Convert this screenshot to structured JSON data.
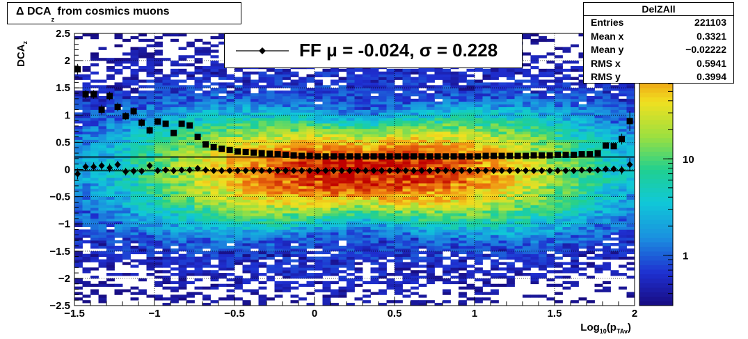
{
  "title": {
    "prefix": "Δ DCA",
    "sub": "z",
    "suffix": " from cosmics muons"
  },
  "stats": {
    "name": "DelZAll",
    "rows": [
      {
        "label": "Entries",
        "value": "221103"
      },
      {
        "label": "Mean x",
        "value": "0.3321"
      },
      {
        "label": "Mean y",
        "value": "−0.02222"
      },
      {
        "label": "RMS x",
        "value": "0.5941"
      },
      {
        "label": "RMS y",
        "value": "0.3994"
      }
    ]
  },
  "legend": {
    "entry": "FF μ = -0.024, σ =   0.228"
  },
  "chart_data": {
    "type": "heatmap",
    "xlabel": {
      "main": "Log",
      "sub1": "10",
      "mid": "(p",
      "sub2": "TAv",
      "end": ")"
    },
    "ylabel": {
      "main": "DCA",
      "sub": "z"
    },
    "xlim": [
      -1.5,
      2
    ],
    "ylim": [
      -2.5,
      2.5
    ],
    "xticks": [
      -1.5,
      -1,
      -0.5,
      0,
      0.5,
      1,
      1.5,
      2
    ],
    "xtick_labels": [
      "−1.5",
      "−1",
      "−0.5",
      "0",
      "0.5",
      "1",
      "1.5",
      "2"
    ],
    "yticks": [
      -2.5,
      -2,
      -1.5,
      -1,
      -0.5,
      0,
      0.5,
      1,
      1.5,
      2,
      2.5
    ],
    "ytick_labels": [
      "−2.5",
      "−2",
      "−1.5",
      "−1",
      "−0.5",
      "0",
      "0.5",
      "1",
      "1.5",
      "2",
      "2.5"
    ],
    "grid": true,
    "colorscale": {
      "log": true,
      "min": 0.3,
      "max": 200,
      "tick_values": [
        1,
        10
      ],
      "tick_labels": [
        "1",
        "10"
      ]
    },
    "mean_markers_x": [
      -1.48,
      -1.43,
      -1.38,
      -1.33,
      -1.28,
      -1.23,
      -1.18,
      -1.13,
      -1.08,
      -1.03,
      -0.98,
      -0.93,
      -0.88,
      -0.83,
      -0.78,
      -0.73,
      -0.68,
      -0.63,
      -0.58,
      -0.53,
      -0.48,
      -0.43,
      -0.38,
      -0.33,
      -0.28,
      -0.23,
      -0.18,
      -0.13,
      -0.08,
      -0.03,
      0.02,
      0.07,
      0.12,
      0.17,
      0.22,
      0.27,
      0.32,
      0.37,
      0.42,
      0.47,
      0.52,
      0.57,
      0.62,
      0.67,
      0.72,
      0.77,
      0.82,
      0.87,
      0.92,
      0.97,
      1.02,
      1.07,
      1.12,
      1.17,
      1.22,
      1.27,
      1.32,
      1.37,
      1.42,
      1.47,
      1.52,
      1.57,
      1.62,
      1.67,
      1.72,
      1.77,
      1.82,
      1.87,
      1.92,
      1.97
    ],
    "series": [
      {
        "marker": "square",
        "values": [
          1.84,
          1.38,
          1.38,
          1.1,
          1.35,
          1.15,
          0.98,
          1.07,
          0.86,
          0.72,
          0.88,
          0.84,
          0.67,
          0.84,
          0.81,
          0.6,
          0.46,
          0.41,
          0.38,
          0.36,
          0.33,
          0.32,
          0.31,
          0.3,
          0.29,
          0.28,
          0.27,
          0.26,
          0.25,
          0.25,
          0.24,
          0.24,
          0.24,
          0.24,
          0.24,
          0.24,
          0.24,
          0.24,
          0.24,
          0.24,
          0.24,
          0.24,
          0.24,
          0.24,
          0.24,
          0.24,
          0.24,
          0.24,
          0.24,
          0.24,
          0.24,
          0.25,
          0.25,
          0.25,
          0.25,
          0.25,
          0.25,
          0.26,
          0.26,
          0.26,
          0.27,
          0.27,
          0.27,
          0.28,
          0.28,
          0.3,
          0.44,
          0.43,
          0.56,
          0.89
        ],
        "errors": [
          0.1,
          0.08,
          0.08,
          0.09,
          0.08,
          0.08,
          0.07,
          0.07,
          0.07,
          0.07,
          0.06,
          0.05,
          0.05,
          0.04,
          0.04,
          0.03,
          0.02,
          0.02,
          0.02,
          0.01,
          0.01,
          0.01,
          0.01,
          0.01,
          0.01,
          0.01,
          0.01,
          0.01,
          0.01,
          0.01,
          0.01,
          0.01,
          0.01,
          0.01,
          0.01,
          0.01,
          0.01,
          0.01,
          0.01,
          0.01,
          0.01,
          0.01,
          0.01,
          0.01,
          0.01,
          0.01,
          0.01,
          0.01,
          0.01,
          0.01,
          0.01,
          0.01,
          0.01,
          0.01,
          0.01,
          0.01,
          0.01,
          0.01,
          0.01,
          0.01,
          0.02,
          0.02,
          0.02,
          0.02,
          0.02,
          0.03,
          0.04,
          0.04,
          0.1,
          0.18
        ]
      },
      {
        "marker": "diamond",
        "values": [
          -0.08,
          0.05,
          0.05,
          0.07,
          0.03,
          0.09,
          -0.04,
          -0.03,
          -0.03,
          0.07,
          -0.02,
          -0.01,
          -0.02,
          -0.01,
          -0.01,
          0.02,
          -0.01,
          -0.02,
          -0.02,
          -0.02,
          -0.02,
          -0.02,
          -0.02,
          -0.02,
          -0.02,
          -0.02,
          -0.02,
          -0.02,
          -0.02,
          -0.02,
          -0.02,
          -0.02,
          -0.02,
          -0.02,
          -0.02,
          -0.02,
          -0.02,
          -0.02,
          -0.02,
          -0.02,
          -0.02,
          -0.02,
          -0.02,
          -0.02,
          -0.02,
          -0.02,
          -0.02,
          -0.02,
          -0.02,
          -0.02,
          -0.02,
          -0.02,
          -0.02,
          -0.02,
          -0.02,
          -0.02,
          -0.02,
          -0.02,
          -0.02,
          -0.02,
          -0.02,
          -0.02,
          -0.02,
          -0.01,
          -0.01,
          -0.01,
          0.01,
          0.01,
          -0.01,
          0.09
        ],
        "errors": [
          0.1,
          0.08,
          0.08,
          0.08,
          0.08,
          0.07,
          0.07,
          0.07,
          0.06,
          0.06,
          0.05,
          0.05,
          0.04,
          0.04,
          0.03,
          0.02,
          0.02,
          0.01,
          0.01,
          0.01,
          0.01,
          0.01,
          0.01,
          0.01,
          0.01,
          0.01,
          0.01,
          0.01,
          0.01,
          0.01,
          0.01,
          0.01,
          0.01,
          0.01,
          0.01,
          0.01,
          0.01,
          0.01,
          0.01,
          0.01,
          0.01,
          0.01,
          0.01,
          0.01,
          0.01,
          0.01,
          0.01,
          0.01,
          0.01,
          0.01,
          0.01,
          0.01,
          0.01,
          0.01,
          0.01,
          0.01,
          0.01,
          0.01,
          0.01,
          0.01,
          0.01,
          0.01,
          0.01,
          0.02,
          0.02,
          0.02,
          0.03,
          0.03,
          0.08,
          0.12
        ]
      }
    ],
    "fit_lines": [
      {
        "y": 0.23
      },
      {
        "y": -0.024
      }
    ],
    "density": {
      "center_x": 0.3321,
      "center_y": -0.02222,
      "rms_x": 0.5941,
      "rms_y": 0.3994,
      "peak": 200
    }
  }
}
